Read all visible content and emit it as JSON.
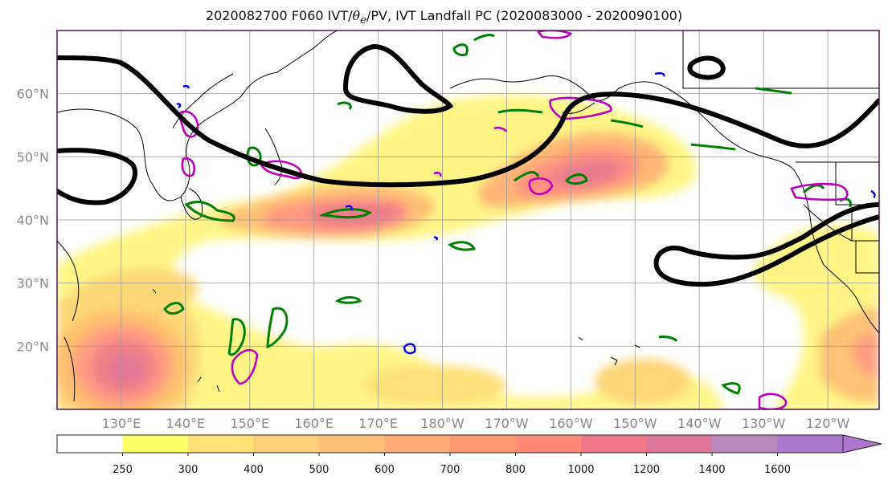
{
  "title": {
    "prefix": "2020082700 F060 IVT/",
    "theta": "θ",
    "theta_sub": "e",
    "suffix": "/PV, IVT Landfall PC (2020083000 - 2020090100)"
  },
  "map": {
    "projection": "plate-carree",
    "lon_range_east": [
      120,
      248
    ],
    "lat_range": [
      10,
      70
    ],
    "grid": true,
    "lon_ticks": [
      "130°E",
      "140°E",
      "150°E",
      "160°E",
      "170°E",
      "180°W",
      "170°W",
      "160°W",
      "150°W",
      "140°W",
      "130°W",
      "120°W"
    ],
    "lat_ticks": [
      "20°N",
      "30°N",
      "40°N",
      "50°N",
      "60°N"
    ]
  },
  "ivt_fields": [
    {
      "name": "western-pacific-typhoon",
      "lon": 130,
      "lat": 17,
      "peak": 1000
    },
    {
      "name": "central-pacific-jet",
      "lon": 168,
      "lat": 42,
      "peak": 1000
    },
    {
      "name": "gulf-of-alaska-jet",
      "lon": 197,
      "lat": 48,
      "peak": 1000
    },
    {
      "name": "subtropical-band",
      "lon": 150,
      "lat": 30,
      "peak": 500
    },
    {
      "name": "eastern-pacific-band",
      "lon": 245,
      "lat": 20,
      "peak": 700
    }
  ],
  "colorbar": {
    "labels": [
      "250",
      "300",
      "400",
      "500",
      "600",
      "700",
      "800",
      "1000",
      "1200",
      "1400",
      "1600"
    ],
    "colors": [
      "#ffffff",
      "#ffff66",
      "#ffe177",
      "#ffcf7a",
      "#ffbf77",
      "#ffaa77",
      "#ff9970",
      "#ff8877",
      "#ee7788",
      "#dd7799",
      "#bb88bb",
      "#aa77cc"
    ],
    "extend": "max"
  },
  "contour_colors": {
    "ivt_landfall_pc": "#000000",
    "theta_e": "#008000",
    "pv_positive": "#bb00bb",
    "pv_negative": "#0000ee",
    "coastline": "#000000"
  }
}
